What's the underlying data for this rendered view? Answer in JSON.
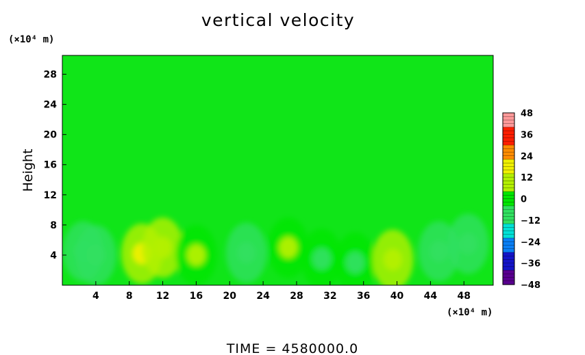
{
  "chart_data": {
    "type": "heatmap",
    "title": "vertical velocity",
    "ylabel": "Height",
    "x_units": "(×10⁴ m)",
    "y_units": "(×10⁴ m)",
    "x_ticks": [
      4,
      8,
      12,
      16,
      20,
      24,
      28,
      32,
      36,
      40,
      44,
      48
    ],
    "y_ticks": [
      4,
      8,
      12,
      16,
      20,
      24,
      28
    ],
    "xlim": [
      0,
      51.5
    ],
    "ylim": [
      0,
      30.5
    ],
    "colorbar": {
      "ticks": [
        48,
        36,
        24,
        12,
        0,
        -12,
        -24,
        -36,
        -48
      ],
      "range": [
        -48,
        48
      ],
      "colors": [
        "#5a0090",
        "#1414c8",
        "#0a7ff5",
        "#00e1d7",
        "#30e060",
        "#00e600",
        "#b4f000",
        "#f0f000",
        "#ff8c00",
        "#ff1e00",
        "#ff9999"
      ]
    },
    "features": [
      {
        "x": 2.5,
        "y": 4.5,
        "w": -12
      },
      {
        "x": 4.0,
        "y": 4.0,
        "w": -10
      },
      {
        "x": 9.5,
        "y": 4.2,
        "w": 14
      },
      {
        "x": 12.0,
        "y": 5.0,
        "w": 8
      },
      {
        "x": 16.0,
        "y": 4.0,
        "w": 5
      },
      {
        "x": 22.0,
        "y": 4.3,
        "w": -13
      },
      {
        "x": 27.0,
        "y": 5.0,
        "w": 6
      },
      {
        "x": 31.0,
        "y": 3.5,
        "w": -7
      },
      {
        "x": 35.0,
        "y": 3.0,
        "w": -5
      },
      {
        "x": 39.5,
        "y": 3.4,
        "w": 9
      },
      {
        "x": 45.0,
        "y": 4.5,
        "w": -10
      },
      {
        "x": 48.5,
        "y": 5.5,
        "w": -8
      }
    ]
  },
  "footer": "TIME  =  4580000.0"
}
